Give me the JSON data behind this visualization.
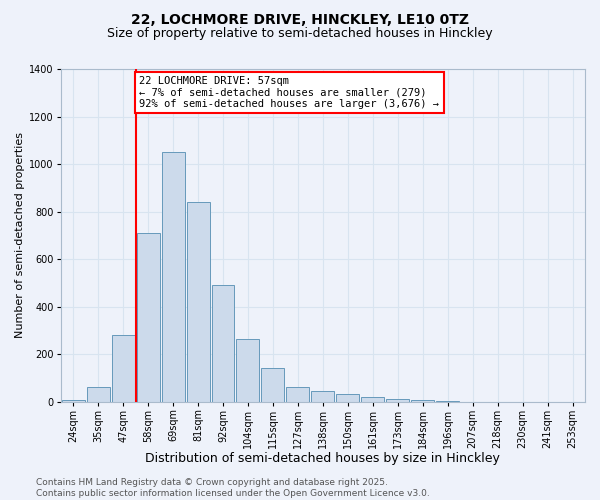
{
  "title_line1": "22, LOCHMORE DRIVE, HINCKLEY, LE10 0TZ",
  "title_line2": "Size of property relative to semi-detached houses in Hinckley",
  "xlabel": "Distribution of semi-detached houses by size in Hinckley",
  "ylabel": "Number of semi-detached properties",
  "categories": [
    "24sqm",
    "35sqm",
    "47sqm",
    "58sqm",
    "69sqm",
    "81sqm",
    "92sqm",
    "104sqm",
    "115sqm",
    "127sqm",
    "138sqm",
    "150sqm",
    "161sqm",
    "173sqm",
    "184sqm",
    "196sqm",
    "207sqm",
    "218sqm",
    "230sqm",
    "241sqm",
    "253sqm"
  ],
  "values": [
    5,
    60,
    280,
    710,
    1050,
    840,
    490,
    265,
    140,
    60,
    45,
    30,
    18,
    12,
    8,
    3,
    0,
    0,
    0,
    0,
    0
  ],
  "bar_color": "#ccdaeb",
  "bar_edge_color": "#6699bb",
  "vline_x_index": 3,
  "vline_color": "red",
  "annotation_text": "22 LOCHMORE DRIVE: 57sqm\n← 7% of semi-detached houses are smaller (279)\n92% of semi-detached houses are larger (3,676) →",
  "annotation_box_color": "white",
  "annotation_box_edge_color": "red",
  "annotation_fontsize": 7.5,
  "ylim": [
    0,
    1400
  ],
  "yticks": [
    0,
    200,
    400,
    600,
    800,
    1000,
    1200,
    1400
  ],
  "grid_color": "#d8e4f0",
  "background_color": "#eef2fa",
  "footer_text": "Contains HM Land Registry data © Crown copyright and database right 2025.\nContains public sector information licensed under the Open Government Licence v3.0.",
  "title_fontsize": 10,
  "subtitle_fontsize": 9,
  "xlabel_fontsize": 9,
  "ylabel_fontsize": 8,
  "tick_fontsize": 7,
  "footer_fontsize": 6.5
}
